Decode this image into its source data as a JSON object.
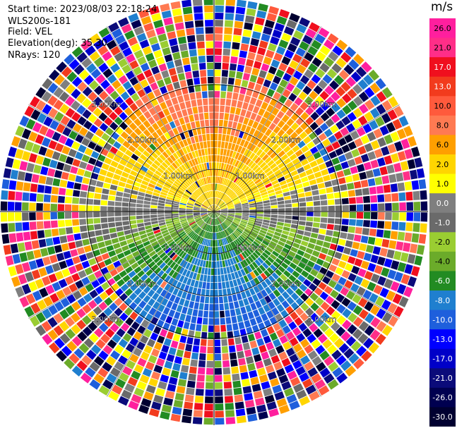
{
  "header": {
    "start_time": "Start time: 2023/08/03 22:18:24",
    "instrument": "WLS200s-181",
    "field": "Field: VEL",
    "elevation": "Elevation(deg): 35.30",
    "nrays": "NRays: 120"
  },
  "colorbar": {
    "unit": "m/s",
    "ticks": [
      "26.0",
      "21.0",
      "17.0",
      "13.0",
      "10.0",
      "8.0",
      "6.0",
      "2.0",
      "1.0",
      "0.0",
      "-1.0",
      "-2.0",
      "-4.0",
      "-6.0",
      "-8.0",
      "-10.0",
      "-13.0",
      "-17.0",
      "-21.0",
      "-26.0",
      "-30.0"
    ],
    "colors": [
      "#ff1f9e",
      "#ff2e88",
      "#f00f1e",
      "#f23b1d",
      "#ff5a3c",
      "#ff7a52",
      "#ff9f00",
      "#ffd500",
      "#ffff00",
      "#7f7f7f",
      "#6a6a6a",
      "#9acd32",
      "#6bab2a",
      "#228b22",
      "#1f7fcf",
      "#1e5fdc",
      "#0000ff",
      "#0000c8",
      "#0b0b7a",
      "#000050",
      "#000030"
    ]
  },
  "chart_data": {
    "type": "ppi",
    "field": "VEL",
    "nrays": 120,
    "range_unit": "km",
    "range_rings_km": [
      1,
      2
    ],
    "ring_labels": [
      "1.00km",
      "2.00km",
      "3.00km"
    ],
    "value_range": [
      -30,
      26
    ]
  }
}
